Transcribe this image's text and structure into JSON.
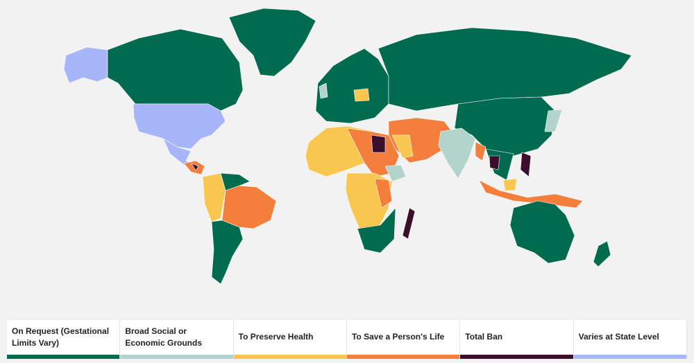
{
  "legend": {
    "items": [
      {
        "label": "On Request (Gestational Limits Vary)",
        "color": "#006b4f"
      },
      {
        "label": "Broad Social or Economic Grounds",
        "color": "#b3d4cc"
      },
      {
        "label": "To Preserve Health",
        "color": "#f9c74f"
      },
      {
        "label": "To Save a Person's Life",
        "color": "#f47f3d"
      },
      {
        "label": "Total Ban",
        "color": "#3b0f2c"
      },
      {
        "label": "Varies at State Level",
        "color": "#a7b6f9"
      }
    ]
  }
}
